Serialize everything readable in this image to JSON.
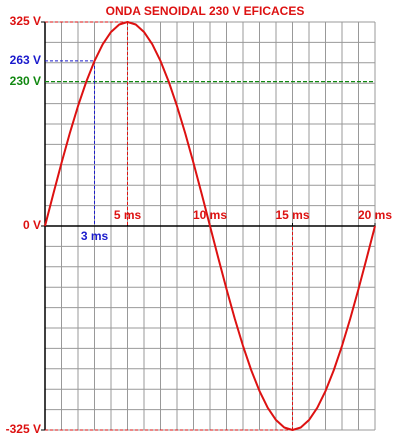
{
  "chart_data": {
    "type": "line",
    "title": "ONDA SENOIDAL 230 V EFICACES",
    "x": [
      0,
      0.5,
      1,
      1.5,
      2,
      2.5,
      3,
      3.5,
      4,
      4.5,
      5,
      5.5,
      6,
      6.5,
      7,
      7.5,
      8,
      8.5,
      9,
      9.5,
      10,
      10.5,
      11,
      11.5,
      12,
      12.5,
      13,
      13.5,
      14,
      14.5,
      15,
      15.5,
      16,
      16.5,
      17,
      17.5,
      18,
      18.5,
      19,
      19.5,
      20
    ],
    "series": [
      {
        "color": "#dd1111",
        "values": [
          0,
          50.8,
          100.4,
          147.6,
          191.0,
          229.8,
          262.9,
          289.6,
          309.1,
          321.0,
          325,
          321.0,
          309.1,
          289.6,
          262.9,
          229.8,
          191.0,
          147.6,
          100.4,
          50.8,
          0,
          -50.8,
          -100.4,
          -147.6,
          -191.0,
          -229.8,
          -262.9,
          -289.6,
          -309.1,
          -321.0,
          -325,
          -321.0,
          -309.1,
          -289.6,
          -262.9,
          -229.8,
          -191.0,
          -147.6,
          -100.4,
          -50.8,
          0
        ]
      }
    ],
    "xlim": [
      0,
      20
    ],
    "ylim": [
      -325,
      325
    ],
    "xticks": [
      {
        "value": 5,
        "label": "5 ms"
      },
      {
        "value": 10,
        "label": "10 ms"
      },
      {
        "value": 15,
        "label": "15 ms"
      },
      {
        "value": 20,
        "label": "20 ms"
      }
    ],
    "yticks": [
      {
        "value": 325,
        "label": "325 V"
      },
      {
        "value": 0,
        "label": "0 V"
      },
      {
        "value": -325,
        "label": "-325 V"
      }
    ],
    "xgrid": [
      0,
      1,
      2,
      3,
      4,
      5,
      6,
      7,
      8,
      9,
      10,
      11,
      12,
      13,
      14,
      15,
      16,
      17,
      18,
      19,
      20
    ],
    "ygrid": [
      -325,
      -292.5,
      -260,
      -227.5,
      -195,
      -162.5,
      -130,
      -97.5,
      -65,
      -32.5,
      0,
      32.5,
      65,
      97.5,
      130,
      162.5,
      195,
      227.5,
      260,
      292.5,
      325
    ],
    "guides": [
      {
        "x": 5,
        "y": 325
      },
      {
        "x": 15,
        "y": -325
      }
    ],
    "marker": {
      "x": 3,
      "y": 263,
      "x_label": "3 ms",
      "y_label": "263 V",
      "color": "#1a1acc"
    },
    "hline": {
      "value": 230,
      "label": "230 V",
      "color": "#118811"
    },
    "label_color": "#dd1111"
  }
}
